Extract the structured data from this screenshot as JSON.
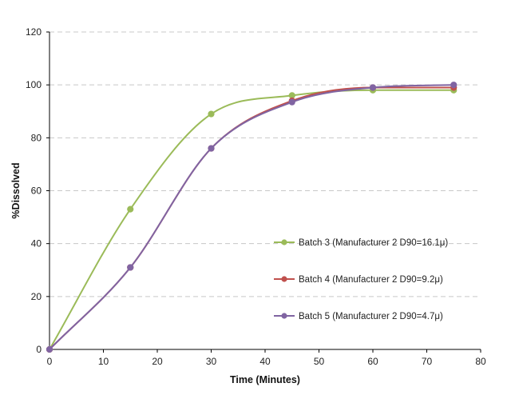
{
  "chart_data": {
    "type": "line",
    "xlabel": "Time (Minutes)",
    "ylabel": "%Dissolved",
    "xlim": [
      0,
      80
    ],
    "ylim": [
      0,
      120
    ],
    "xticks": [
      0,
      10,
      20,
      30,
      40,
      50,
      60,
      70,
      80
    ],
    "yticks": [
      0,
      20,
      40,
      60,
      80,
      100,
      120
    ],
    "grid": "horizontal-dashed",
    "legend_position": "right-middle",
    "x": [
      0,
      15,
      30,
      45,
      60,
      75
    ],
    "series": [
      {
        "name": "Batch 3 (Manufacturer 2 D90=16.1μ)",
        "color": "#9BBB59",
        "values": [
          0,
          53,
          89,
          96,
          98,
          98
        ]
      },
      {
        "name": "Batch 4 (Manufacturer 2 D90=9.2μ)",
        "color": "#C0504D",
        "values": [
          0,
          31,
          76,
          94,
          99,
          99
        ]
      },
      {
        "name": "Batch 5 (Manufacturer 2 D90=4.7μ)",
        "color": "#8064A2",
        "values": [
          0,
          31,
          76,
          93.5,
          99,
          100
        ]
      }
    ]
  }
}
